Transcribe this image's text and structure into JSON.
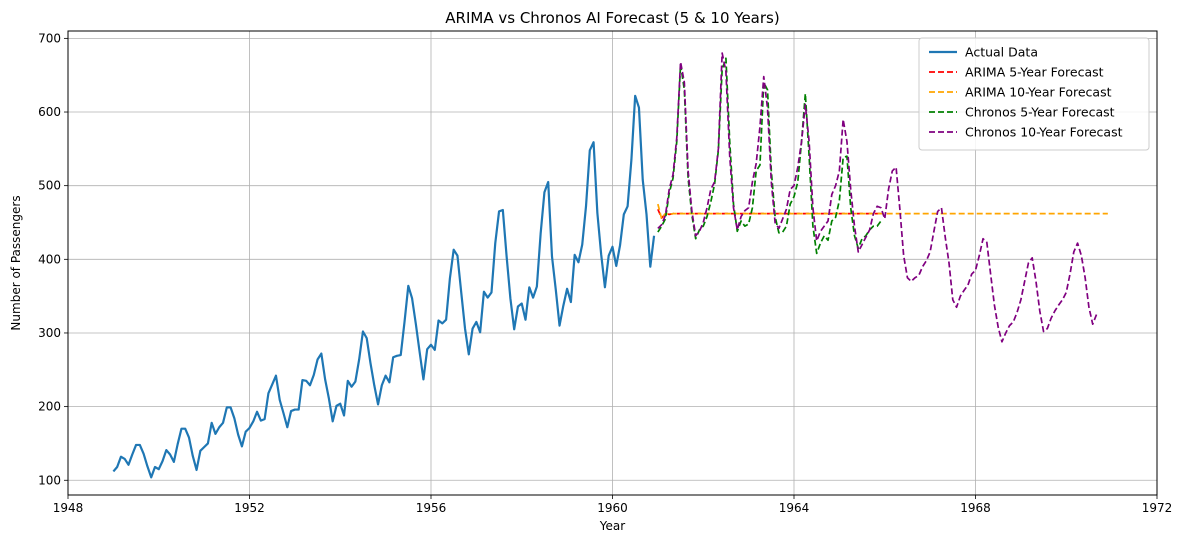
{
  "chart_data": {
    "type": "line",
    "title": "ARIMA vs Chronos AI Forecast (5 & 10 Years)",
    "xlabel": "Year",
    "ylabel": "Number of Passengers",
    "xlim": [
      1948.0,
      1972.0
    ],
    "ylim": [
      80,
      710
    ],
    "x_ticks": [
      1948,
      1952,
      1956,
      1960,
      1964,
      1968,
      1972
    ],
    "y_ticks": [
      100,
      200,
      300,
      400,
      500,
      600,
      700
    ],
    "grid": true,
    "legend_position": "top-right",
    "x_start": 1949.0,
    "x_step": 0.08333,
    "series": [
      {
        "name": "Actual Data",
        "color": "#1f77b4",
        "style": "solid",
        "start": 1949.0,
        "values": [
          112,
          118,
          132,
          129,
          121,
          135,
          148,
          148,
          136,
          119,
          104,
          118,
          115,
          126,
          141,
          135,
          125,
          149,
          170,
          170,
          158,
          133,
          114,
          140,
          145,
          150,
          178,
          163,
          172,
          178,
          199,
          199,
          184,
          162,
          146,
          166,
          171,
          180,
          193,
          181,
          183,
          218,
          230,
          242,
          209,
          191,
          172,
          194,
          196,
          196,
          236,
          235,
          229,
          243,
          264,
          272,
          237,
          211,
          180,
          201,
          204,
          188,
          235,
          227,
          234,
          264,
          302,
          293,
          259,
          229,
          203,
          229,
          242,
          233,
          267,
          269,
          270,
          315,
          364,
          347,
          312,
          274,
          237,
          278,
          284,
          277,
          317,
          313,
          318,
          374,
          413,
          405,
          355,
          306,
          271,
          306,
          315,
          301,
          356,
          348,
          355,
          422,
          465,
          467,
          404,
          347,
          305,
          336,
          340,
          318,
          362,
          348,
          363,
          435,
          491,
          505,
          404,
          359,
          310,
          337,
          360,
          342,
          406,
          396,
          420,
          472,
          548,
          559,
          463,
          407,
          362,
          405,
          417,
          391,
          419,
          461,
          472,
          535,
          622,
          606,
          508,
          461,
          390,
          432
        ]
      },
      {
        "name": "ARIMA 5-Year Forecast",
        "color": "#ff0000",
        "style": "dashed",
        "start": 1961.0,
        "values": [
          468,
          456,
          462,
          461,
          462,
          462,
          462,
          462,
          462,
          462,
          462,
          462,
          462,
          462,
          462,
          462,
          462,
          462,
          462,
          462,
          462,
          462,
          462,
          462,
          462,
          462,
          462,
          462,
          462,
          462,
          462,
          462,
          462,
          462,
          462,
          462,
          462,
          462,
          462,
          462,
          462,
          462,
          462,
          462,
          462,
          462,
          462,
          462,
          462,
          462,
          462,
          462,
          462,
          462,
          462,
          462,
          462,
          462,
          462,
          462
        ]
      },
      {
        "name": "ARIMA 10-Year Forecast",
        "color": "#ffa500",
        "style": "dashed",
        "start": 1961.0,
        "values": [
          475,
          455,
          462,
          461,
          462,
          462,
          462,
          462,
          462,
          462,
          462,
          462,
          462,
          462,
          462,
          462,
          462,
          462,
          462,
          462,
          462,
          462,
          462,
          462,
          462,
          462,
          462,
          462,
          462,
          462,
          462,
          462,
          462,
          462,
          462,
          462,
          462,
          462,
          462,
          462,
          462,
          462,
          462,
          462,
          462,
          462,
          462,
          462,
          462,
          462,
          462,
          462,
          462,
          462,
          462,
          462,
          462,
          462,
          462,
          462,
          462,
          462,
          462,
          462,
          462,
          462,
          462,
          462,
          462,
          462,
          462,
          462,
          462,
          462,
          462,
          462,
          462,
          462,
          462,
          462,
          462,
          462,
          462,
          462,
          462,
          462,
          462,
          462,
          462,
          462,
          462,
          462,
          462,
          462,
          462,
          462,
          462,
          462,
          462,
          462,
          462,
          462,
          462,
          462,
          462,
          462,
          462,
          462,
          462,
          462,
          462,
          462,
          462,
          462,
          462,
          462,
          462,
          462,
          462,
          462
        ]
      },
      {
        "name": "Chronos 5-Year Forecast",
        "color": "#008000",
        "style": "dashed",
        "start": 1961.0,
        "values": [
          437,
          445,
          455,
          490,
          510,
          560,
          665,
          630,
          510,
          460,
          428,
          440,
          445,
          458,
          478,
          502,
          548,
          658,
          673,
          560,
          475,
          438,
          452,
          445,
          448,
          470,
          520,
          528,
          640,
          630,
          520,
          458,
          436,
          437,
          445,
          475,
          485,
          505,
          560,
          625,
          540,
          445,
          408,
          422,
          432,
          426,
          452,
          457,
          480,
          538,
          540,
          470,
          432,
          415,
          428,
          432,
          440,
          445,
          445,
          452
        ]
      },
      {
        "name": "Chronos 10-Year Forecast",
        "color": "#800080",
        "style": "dashed",
        "start": 1961.0,
        "values": [
          442,
          447,
          460,
          495,
          515,
          565,
          668,
          640,
          520,
          465,
          432,
          438,
          450,
          470,
          495,
          505,
          550,
          680,
          655,
          540,
          470,
          440,
          458,
          466,
          470,
          505,
          530,
          580,
          648,
          605,
          505,
          450,
          442,
          455,
          468,
          495,
          500,
          525,
          560,
          610,
          560,
          470,
          425,
          438,
          445,
          452,
          488,
          500,
          520,
          590,
          560,
          495,
          445,
          410,
          420,
          430,
          440,
          462,
          472,
          470,
          455,
          495,
          520,
          525,
          468,
          405,
          375,
          370,
          375,
          378,
          390,
          398,
          410,
          438,
          465,
          470,
          430,
          395,
          345,
          335,
          350,
          358,
          365,
          380,
          385,
          405,
          428,
          423,
          380,
          338,
          308,
          288,
          300,
          310,
          315,
          328,
          345,
          370,
          395,
          402,
          370,
          330,
          302,
          306,
          320,
          330,
          338,
          345,
          355,
          380,
          410,
          422,
          405,
          375,
          335,
          312,
          325
        ]
      }
    ]
  }
}
